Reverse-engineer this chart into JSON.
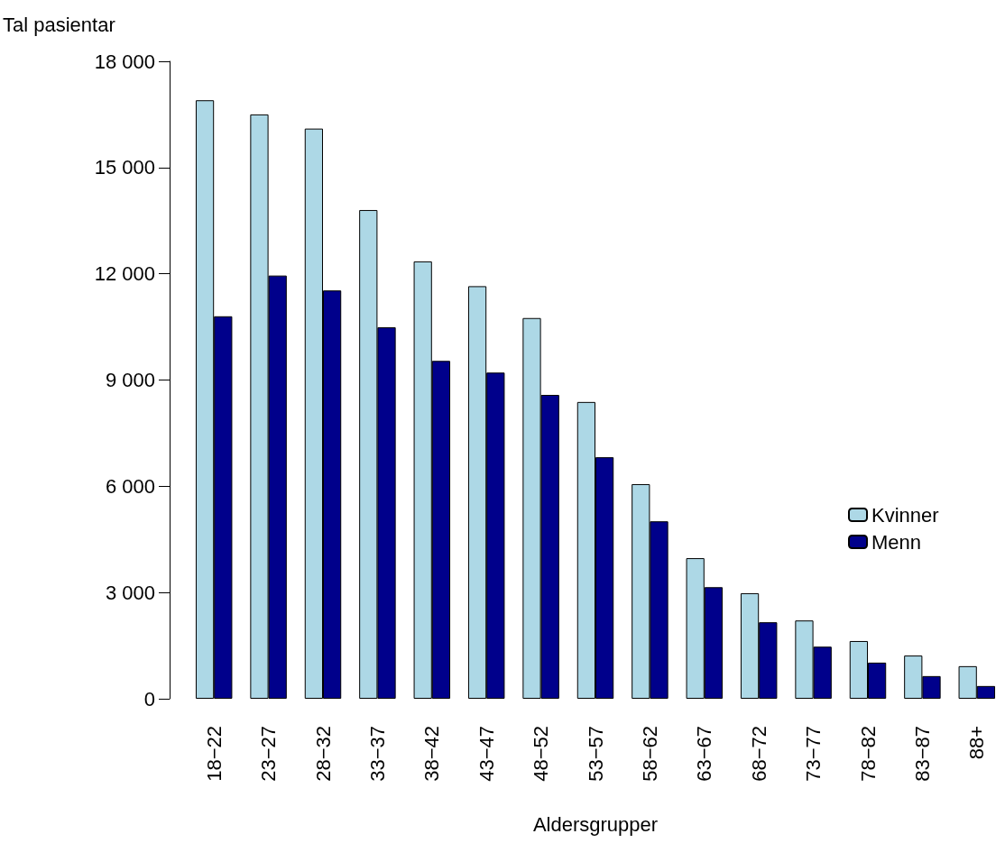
{
  "chart_data": {
    "type": "bar",
    "ylabel": "Tal pasientar",
    "xlabel": "Aldersgrupper",
    "categories": [
      "18−22",
      "23−27",
      "28−32",
      "33−37",
      "38−42",
      "43−47",
      "48−52",
      "53−57",
      "58−62",
      "63−67",
      "68−72",
      "73−77",
      "78−82",
      "83−87",
      "88+"
    ],
    "series": [
      {
        "name": "Kvinner",
        "color": "#add8e6",
        "values": [
          16900,
          16500,
          16100,
          13800,
          12350,
          11650,
          10750,
          8380,
          6060,
          3970,
          2980,
          2210,
          1630,
          1220,
          920
        ]
      },
      {
        "name": "Menn",
        "color": "#00008b",
        "values": [
          10800,
          11950,
          11530,
          10490,
          9540,
          9210,
          8580,
          6820,
          5010,
          3150,
          2160,
          1470,
          1020,
          640,
          360
        ]
      }
    ],
    "ylim": [
      0,
      18000
    ],
    "yticks": [
      {
        "value": 0,
        "label": "0"
      },
      {
        "value": 3000,
        "label": "3 000"
      },
      {
        "value": 6000,
        "label": "6 000"
      },
      {
        "value": 9000,
        "label": "9 000"
      },
      {
        "value": 12000,
        "label": "12 000"
      },
      {
        "value": 15000,
        "label": "15 000"
      },
      {
        "value": 18000,
        "label": "18 000"
      }
    ],
    "grid": false,
    "legend": "right"
  }
}
